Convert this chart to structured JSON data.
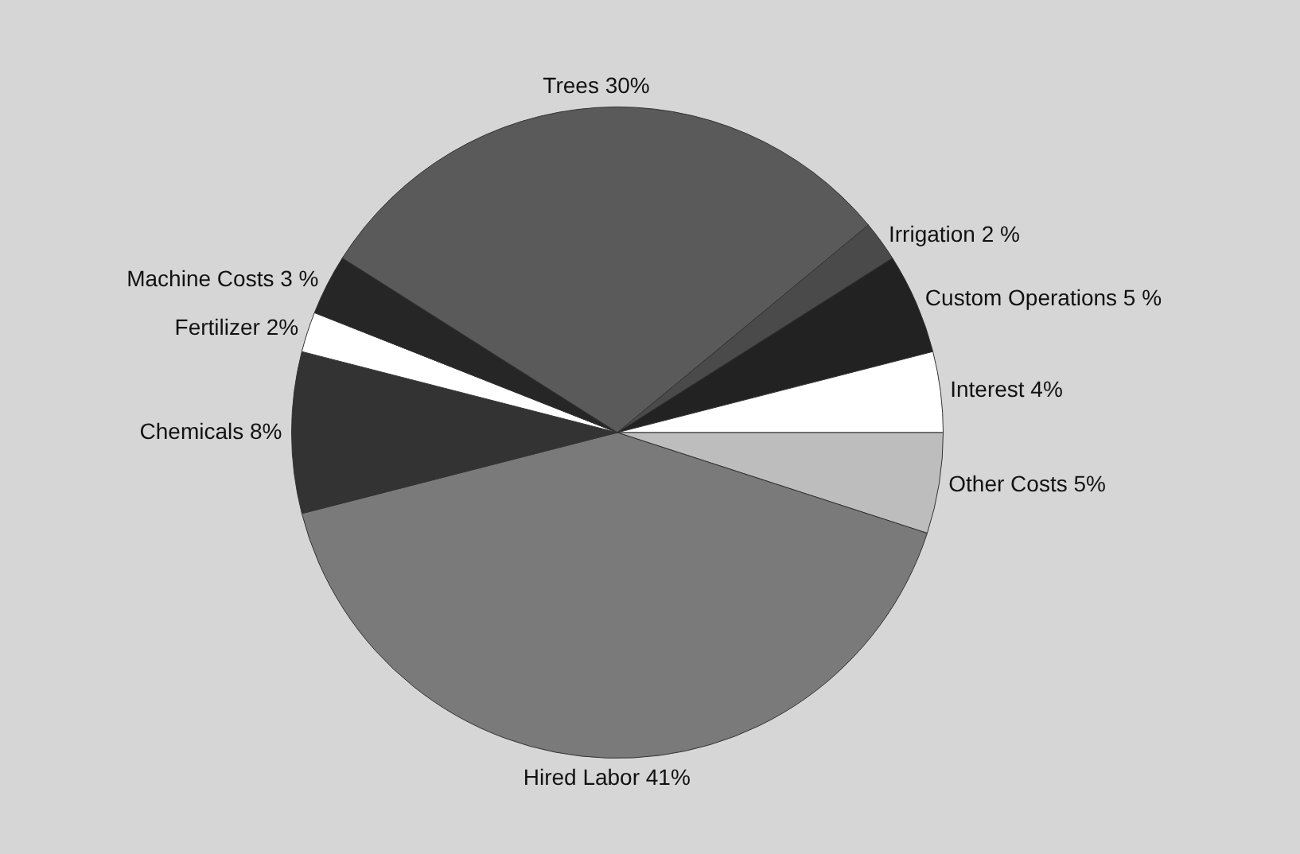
{
  "chart_data": {
    "type": "pie",
    "categories": [
      "Trees",
      "Irrigation",
      "Custom Operations",
      "Interest",
      "Other Costs",
      "Hired Labor",
      "Chemicals",
      "Fertilizer",
      "Machine Costs"
    ],
    "values": [
      30,
      2,
      5,
      4,
      5,
      41,
      8,
      2,
      3
    ],
    "value_labels": [
      "30%",
      "2 %",
      "5 %",
      "4%",
      "5%",
      "41%",
      "8%",
      "2%",
      "3 %"
    ],
    "colors": [
      "#5a5a5a",
      "#4a4a4a",
      "#222222",
      "#ffffff",
      "#bdbdbd",
      "#7a7a7a",
      "#333333",
      "#ffffff",
      "#262626"
    ],
    "legend": false
  }
}
